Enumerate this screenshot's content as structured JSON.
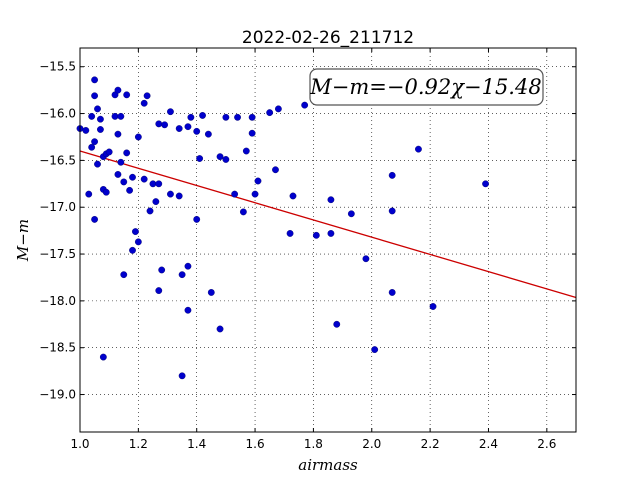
{
  "chart_data": {
    "type": "scatter",
    "title": "2022-02-26_211712",
    "xlabel": "airmass",
    "ylabel": "M−m",
    "xlim": [
      1.0,
      2.7
    ],
    "ylim": [
      -19.4,
      -15.3
    ],
    "y_inverted_display": true,
    "xticks": [
      "1.0",
      "1.2",
      "1.4",
      "1.6",
      "1.8",
      "2.0",
      "2.2",
      "2.4",
      "2.6"
    ],
    "yticks": [
      "−15.5",
      "−16.0",
      "−16.5",
      "−17.0",
      "−17.5",
      "−18.0",
      "−18.5",
      "−19.0"
    ],
    "grid": true,
    "point_color": "#0000cc",
    "fit_color": "#cc0000",
    "fit": {
      "slope": -0.92,
      "intercept": -15.48
    },
    "equation": "M−m=−0.92χ−15.48",
    "equation_position": "top-right",
    "points": [
      {
        "x": 1.0,
        "y": -16.16
      },
      {
        "x": 1.02,
        "y": -16.18
      },
      {
        "x": 1.03,
        "y": -16.86
      },
      {
        "x": 1.04,
        "y": -16.36
      },
      {
        "x": 1.04,
        "y": -16.03
      },
      {
        "x": 1.05,
        "y": -15.64
      },
      {
        "x": 1.05,
        "y": -15.81
      },
      {
        "x": 1.05,
        "y": -16.3
      },
      {
        "x": 1.05,
        "y": -17.13
      },
      {
        "x": 1.06,
        "y": -16.54
      },
      {
        "x": 1.06,
        "y": -15.95
      },
      {
        "x": 1.07,
        "y": -16.06
      },
      {
        "x": 1.07,
        "y": -16.17
      },
      {
        "x": 1.08,
        "y": -16.46
      },
      {
        "x": 1.08,
        "y": -16.81
      },
      {
        "x": 1.08,
        "y": -18.6
      },
      {
        "x": 1.09,
        "y": -16.43
      },
      {
        "x": 1.09,
        "y": -16.84
      },
      {
        "x": 1.1,
        "y": -16.41
      },
      {
        "x": 1.12,
        "y": -16.03
      },
      {
        "x": 1.12,
        "y": -15.8
      },
      {
        "x": 1.13,
        "y": -16.65
      },
      {
        "x": 1.13,
        "y": -16.22
      },
      {
        "x": 1.13,
        "y": -15.75
      },
      {
        "x": 1.14,
        "y": -16.52
      },
      {
        "x": 1.14,
        "y": -16.03
      },
      {
        "x": 1.15,
        "y": -16.73
      },
      {
        "x": 1.15,
        "y": -17.72
      },
      {
        "x": 1.16,
        "y": -16.42
      },
      {
        "x": 1.16,
        "y": -15.8
      },
      {
        "x": 1.17,
        "y": -16.82
      },
      {
        "x": 1.18,
        "y": -17.46
      },
      {
        "x": 1.18,
        "y": -16.68
      },
      {
        "x": 1.19,
        "y": -17.26
      },
      {
        "x": 1.2,
        "y": -17.37
      },
      {
        "x": 1.2,
        "y": -16.25
      },
      {
        "x": 1.22,
        "y": -16.7
      },
      {
        "x": 1.22,
        "y": -15.89
      },
      {
        "x": 1.23,
        "y": -15.81
      },
      {
        "x": 1.24,
        "y": -17.04
      },
      {
        "x": 1.25,
        "y": -16.75
      },
      {
        "x": 1.26,
        "y": -16.94
      },
      {
        "x": 1.27,
        "y": -16.75
      },
      {
        "x": 1.27,
        "y": -16.11
      },
      {
        "x": 1.27,
        "y": -17.89
      },
      {
        "x": 1.28,
        "y": -17.67
      },
      {
        "x": 1.29,
        "y": -16.12
      },
      {
        "x": 1.31,
        "y": -15.98
      },
      {
        "x": 1.31,
        "y": -16.86
      },
      {
        "x": 1.34,
        "y": -16.88
      },
      {
        "x": 1.34,
        "y": -16.16
      },
      {
        "x": 1.35,
        "y": -17.72
      },
      {
        "x": 1.35,
        "y": -18.8
      },
      {
        "x": 1.37,
        "y": -17.63
      },
      {
        "x": 1.37,
        "y": -16.14
      },
      {
        "x": 1.38,
        "y": -16.04
      },
      {
        "x": 1.37,
        "y": -18.1
      },
      {
        "x": 1.4,
        "y": -17.13
      },
      {
        "x": 1.4,
        "y": -16.19
      },
      {
        "x": 1.41,
        "y": -16.48
      },
      {
        "x": 1.42,
        "y": -16.02
      },
      {
        "x": 1.44,
        "y": -16.22
      },
      {
        "x": 1.45,
        "y": -17.91
      },
      {
        "x": 1.48,
        "y": -16.46
      },
      {
        "x": 1.48,
        "y": -18.3
      },
      {
        "x": 1.5,
        "y": -16.04
      },
      {
        "x": 1.5,
        "y": -16.49
      },
      {
        "x": 1.53,
        "y": -16.86
      },
      {
        "x": 1.54,
        "y": -16.04
      },
      {
        "x": 1.56,
        "y": -17.05
      },
      {
        "x": 1.57,
        "y": -16.4
      },
      {
        "x": 1.59,
        "y": -16.04
      },
      {
        "x": 1.59,
        "y": -16.21
      },
      {
        "x": 1.6,
        "y": -16.86
      },
      {
        "x": 1.61,
        "y": -16.72
      },
      {
        "x": 1.65,
        "y": -15.99
      },
      {
        "x": 1.67,
        "y": -16.6
      },
      {
        "x": 1.68,
        "y": -15.95
      },
      {
        "x": 1.72,
        "y": -17.28
      },
      {
        "x": 1.73,
        "y": -16.88
      },
      {
        "x": 1.77,
        "y": -15.91
      },
      {
        "x": 1.81,
        "y": -17.3
      },
      {
        "x": 1.86,
        "y": -16.92
      },
      {
        "x": 1.86,
        "y": -17.28
      },
      {
        "x": 1.88,
        "y": -18.25
      },
      {
        "x": 1.93,
        "y": -17.07
      },
      {
        "x": 1.98,
        "y": -17.55
      },
      {
        "x": 2.01,
        "y": -18.52
      },
      {
        "x": 2.07,
        "y": -16.66
      },
      {
        "x": 2.07,
        "y": -17.04
      },
      {
        "x": 2.07,
        "y": -17.91
      },
      {
        "x": 2.16,
        "y": -16.38
      },
      {
        "x": 2.21,
        "y": -18.06
      },
      {
        "x": 2.39,
        "y": -16.75
      }
    ]
  }
}
